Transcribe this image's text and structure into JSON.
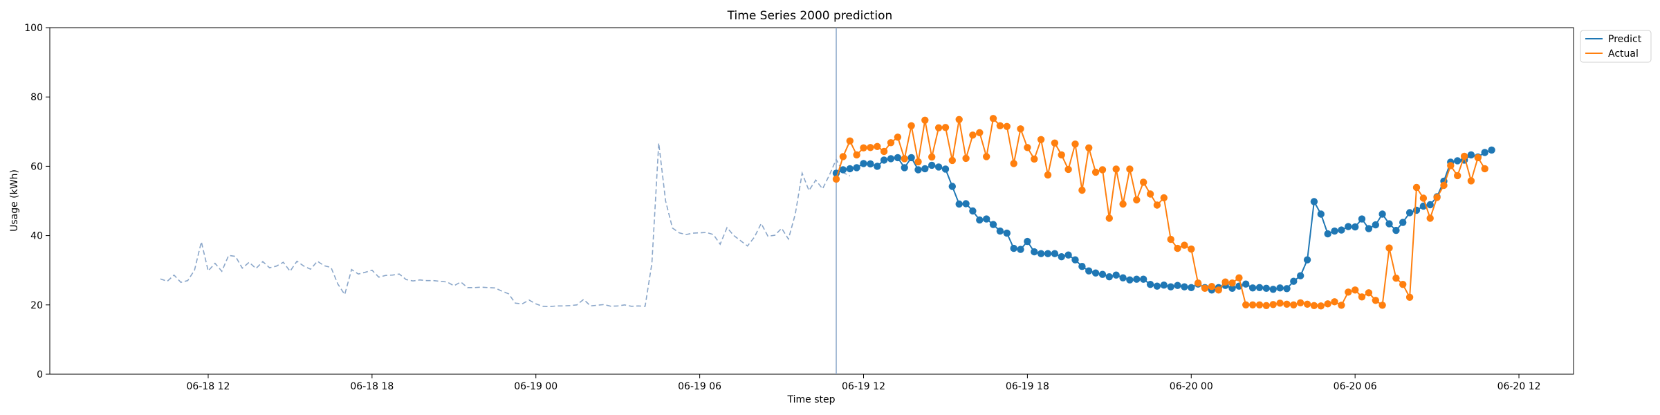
{
  "chart_data": {
    "type": "line",
    "title": "Time Series 2000 prediction",
    "xlabel": "Time step",
    "ylabel": "Usage (kWh)",
    "xlim": [
      "2025-06-18 06:12",
      "2025-06-20 14:00"
    ],
    "ylim": [
      0,
      100
    ],
    "yticks": [
      0,
      20,
      40,
      60,
      80,
      100
    ],
    "xticks": [
      {
        "t": "2025-06-18 12:00",
        "label": "06-18 12"
      },
      {
        "t": "2025-06-18 18:00",
        "label": "06-18 18"
      },
      {
        "t": "2025-06-19 00:00",
        "label": "06-19 00"
      },
      {
        "t": "2025-06-19 06:00",
        "label": "06-19 06"
      },
      {
        "t": "2025-06-19 12:00",
        "label": "06-19 12"
      },
      {
        "t": "2025-06-19 18:00",
        "label": "06-19 18"
      },
      {
        "t": "2025-06-20 00:00",
        "label": "06-20 00"
      },
      {
        "t": "2025-06-20 06:00",
        "label": "06-20 06"
      },
      {
        "t": "2025-06-20 12:00",
        "label": "06-20 12"
      }
    ],
    "legend": {
      "position": "top-right"
    },
    "forecast_start": "2025-06-19 11:00",
    "history": {
      "start": "2025-06-18 10:15",
      "interval_minutes": 15,
      "color": "#8aa6c9",
      "style": "dashed",
      "values": [
        27.5,
        26.8,
        28.6,
        26.5,
        27.0,
        30.0,
        38.2,
        29.8,
        32.0,
        29.7,
        34.3,
        34.0,
        30.6,
        32.3,
        30.5,
        32.5,
        30.7,
        31.2,
        32.3,
        29.7,
        32.6,
        31.2,
        30.3,
        32.6,
        31.3,
        30.8,
        26.0,
        23.0,
        30.2,
        28.9,
        29.4,
        30.0,
        28.0,
        28.5,
        28.6,
        28.9,
        27.3,
        26.9,
        27.2,
        27.0,
        27.0,
        26.8,
        26.6,
        25.5,
        26.6,
        25.0,
        25.0,
        25.1,
        25.0,
        24.9,
        24.0,
        23.2,
        20.5,
        20.3,
        21.4,
        20.3,
        19.6,
        19.5,
        19.7,
        19.7,
        19.8,
        20.0,
        21.6,
        19.7,
        19.9,
        20.1,
        19.6,
        19.7,
        20.0,
        19.6,
        19.7,
        19.6,
        32.0,
        66.7,
        50.0,
        42.2,
        40.8,
        40.3,
        40.7,
        40.8,
        40.9,
        40.3,
        37.5,
        42.3,
        40.0,
        38.5,
        37.0,
        39.5,
        43.5,
        39.8,
        40.1,
        42.1,
        39.0,
        46.2,
        58.0,
        53.0,
        56.0,
        53.5,
        57.5,
        62.0,
        58.2,
        57.2
      ]
    },
    "series": [
      {
        "name": "Predict",
        "color": "#1f77b4",
        "start": "2025-06-19 11:00",
        "interval_minutes": 15,
        "values": [
          58.0,
          59.0,
          59.3,
          59.6,
          60.8,
          60.7,
          60.0,
          61.8,
          62.2,
          62.5,
          59.6,
          62.5,
          59.0,
          59.3,
          60.3,
          59.8,
          59.2,
          54.2,
          49.1,
          49.2,
          47.1,
          44.5,
          44.8,
          43.2,
          41.3,
          40.7,
          36.3,
          36.0,
          38.3,
          35.3,
          34.8,
          34.8,
          34.8,
          33.9,
          34.4,
          33.0,
          31.1,
          29.8,
          29.2,
          28.8,
          28.1,
          28.6,
          27.8,
          27.2,
          27.4,
          27.4,
          25.9,
          25.4,
          25.7,
          25.2,
          25.6,
          25.2,
          25.0,
          26.0,
          25.0,
          24.3,
          25.0,
          25.6,
          24.8,
          25.4,
          26.0,
          24.9,
          25.0,
          24.8,
          24.5,
          24.9,
          24.7,
          26.8,
          28.4,
          33.0,
          49.8,
          46.2,
          40.5,
          41.3,
          41.6,
          42.6,
          42.5,
          44.8,
          42.0,
          43.1,
          46.2,
          43.4,
          41.5,
          43.8,
          46.6,
          47.3,
          48.5,
          48.9,
          51.2,
          55.7,
          61.2,
          61.6,
          61.8,
          63.3,
          62.7,
          64.0,
          64.7
        ]
      },
      {
        "name": "Actual",
        "color": "#ff7f0e",
        "start": "2025-06-19 11:00",
        "interval_minutes": 15,
        "values": [
          56.3,
          62.8,
          67.3,
          63.3,
          65.3,
          65.4,
          65.7,
          64.3,
          66.8,
          68.4,
          62.2,
          71.7,
          61.3,
          73.3,
          62.7,
          71.1,
          71.2,
          61.7,
          73.5,
          62.3,
          69.0,
          69.7,
          62.8,
          73.8,
          71.7,
          71.5,
          60.8,
          70.8,
          65.4,
          62.1,
          67.7,
          57.5,
          66.7,
          63.3,
          59.1,
          66.4,
          53.1,
          65.3,
          58.3,
          59.0,
          45.0,
          59.2,
          49.1,
          59.2,
          50.3,
          55.4,
          52.0,
          48.8,
          50.9,
          38.9,
          36.3,
          37.2,
          36.1,
          26.3,
          24.8,
          25.3,
          24.3,
          26.6,
          26.3,
          27.8,
          20.0,
          20.0,
          20.0,
          19.8,
          20.1,
          20.5,
          20.2,
          20.0,
          20.6,
          20.2,
          19.8,
          19.7,
          20.3,
          20.9,
          19.9,
          23.7,
          24.3,
          22.3,
          23.5,
          21.3,
          19.9,
          36.4,
          27.7,
          25.9,
          22.2,
          53.9,
          50.8,
          45.0,
          51.0,
          54.5,
          60.2,
          57.3,
          62.9,
          55.8,
          62.5,
          59.3
        ]
      }
    ]
  }
}
